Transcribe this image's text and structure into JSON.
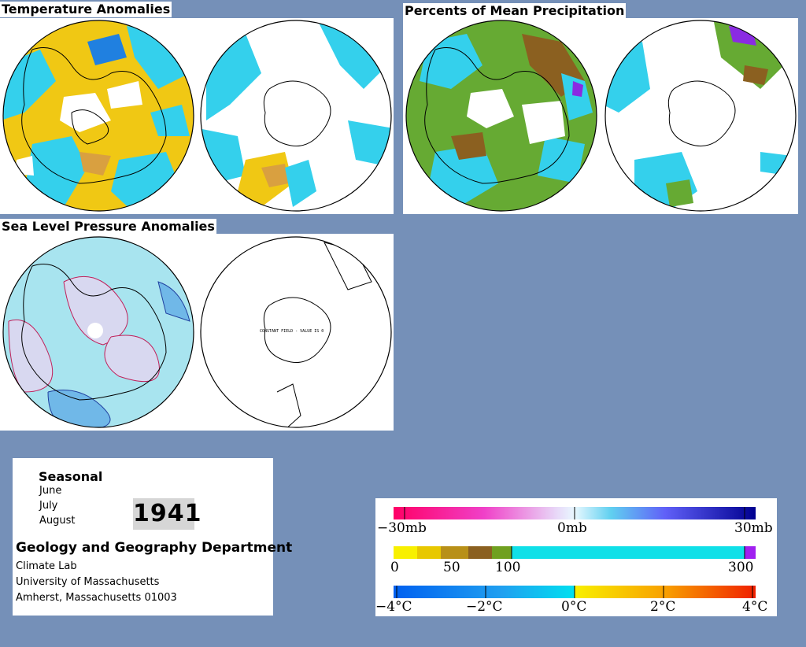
{
  "panels": {
    "temperature": {
      "title": "Temperature Anomalies"
    },
    "precipitation": {
      "title": "Percents of Mean Precipitation"
    },
    "pressure": {
      "title": "Sea Level Pressure Anomalies",
      "southern_note": "CONSTANT FIELD - VALUE IS 0"
    }
  },
  "info": {
    "season": "Seasonal",
    "months": [
      "June",
      "July",
      "August"
    ],
    "year": "1941",
    "department": "Geology and Geography Department",
    "lines": [
      "Climate Lab",
      "University of Massachusetts",
      "Amherst, Massachusetts 01003"
    ]
  },
  "legend": {
    "pressure": {
      "labels": [
        "−30mb",
        "0mb",
        "30mb"
      ]
    },
    "precip": {
      "labels": [
        "0",
        "50",
        "100",
        "300"
      ]
    },
    "temp": {
      "labels": [
        "−4°C",
        "−2°C",
        "0°C",
        "2°C",
        "4°C"
      ]
    }
  },
  "colors": {
    "background": "#7590b8",
    "warm_yellow": "#f0c814",
    "warm_orange": "#d9a040",
    "cool_cyan": "#34d0ec",
    "cool_blue": "#2080e0",
    "precip_green": "#66aa33",
    "precip_brown": "#8b6020",
    "precip_purple": "#8a2be2",
    "pressure_fill": "#a8e4ef",
    "pressure_contour": "#c0205a"
  }
}
